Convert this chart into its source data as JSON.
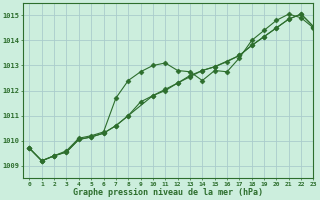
{
  "title": "Graphe pression niveau de la mer (hPa)",
  "bg_color": "#cceedd",
  "line_color": "#2d6e2d",
  "grid_color": "#aacccc",
  "xlim": [
    -0.5,
    23
  ],
  "ylim": [
    1008.5,
    1015.5
  ],
  "xticks": [
    0,
    1,
    2,
    3,
    4,
    5,
    6,
    7,
    8,
    9,
    10,
    11,
    12,
    13,
    14,
    15,
    16,
    17,
    18,
    19,
    20,
    21,
    22,
    23
  ],
  "yticks": [
    1009,
    1010,
    1011,
    1012,
    1013,
    1014,
    1015
  ],
  "series1_x": [
    0,
    1,
    2,
    3,
    4,
    5,
    6,
    7,
    8,
    9,
    10,
    11,
    12,
    13,
    14,
    15,
    16,
    17,
    18,
    19,
    20,
    21,
    22,
    23
  ],
  "series1_y": [
    1009.7,
    1009.2,
    1009.4,
    1009.6,
    1010.1,
    1010.2,
    1010.35,
    1011.7,
    1012.4,
    1012.75,
    1013.0,
    1013.1,
    1012.8,
    1012.75,
    1012.4,
    1012.8,
    1012.75,
    1013.3,
    1014.0,
    1014.4,
    1014.8,
    1015.05,
    1014.9,
    1014.5
  ],
  "series2_x": [
    0,
    1,
    2,
    3,
    4,
    5,
    6,
    7,
    8,
    10,
    11,
    12,
    13,
    14,
    15,
    17,
    18,
    19,
    20,
    21,
    22,
    23
  ],
  "series2_y": [
    1009.7,
    1009.2,
    1009.4,
    1009.55,
    1010.05,
    1010.15,
    1010.3,
    1010.6,
    1011.0,
    1011.8,
    1012.0,
    1012.3,
    1012.6,
    1012.8,
    1012.95,
    1013.4,
    1013.8,
    1014.15,
    1014.5,
    1014.85,
    1015.05,
    1014.55
  ],
  "series3_x": [
    0,
    1,
    2,
    3,
    4,
    5,
    6,
    7,
    8,
    9,
    10,
    11,
    12,
    13,
    14,
    15,
    16,
    17,
    18,
    19,
    20,
    21,
    22,
    23
  ],
  "series3_y": [
    1009.7,
    1009.2,
    1009.4,
    1009.55,
    1010.05,
    1010.15,
    1010.3,
    1010.6,
    1011.0,
    1011.55,
    1011.8,
    1012.05,
    1012.3,
    1012.55,
    1012.8,
    1012.95,
    1013.15,
    1013.4,
    1013.8,
    1014.15,
    1014.5,
    1014.85,
    1015.05,
    1014.55
  ]
}
